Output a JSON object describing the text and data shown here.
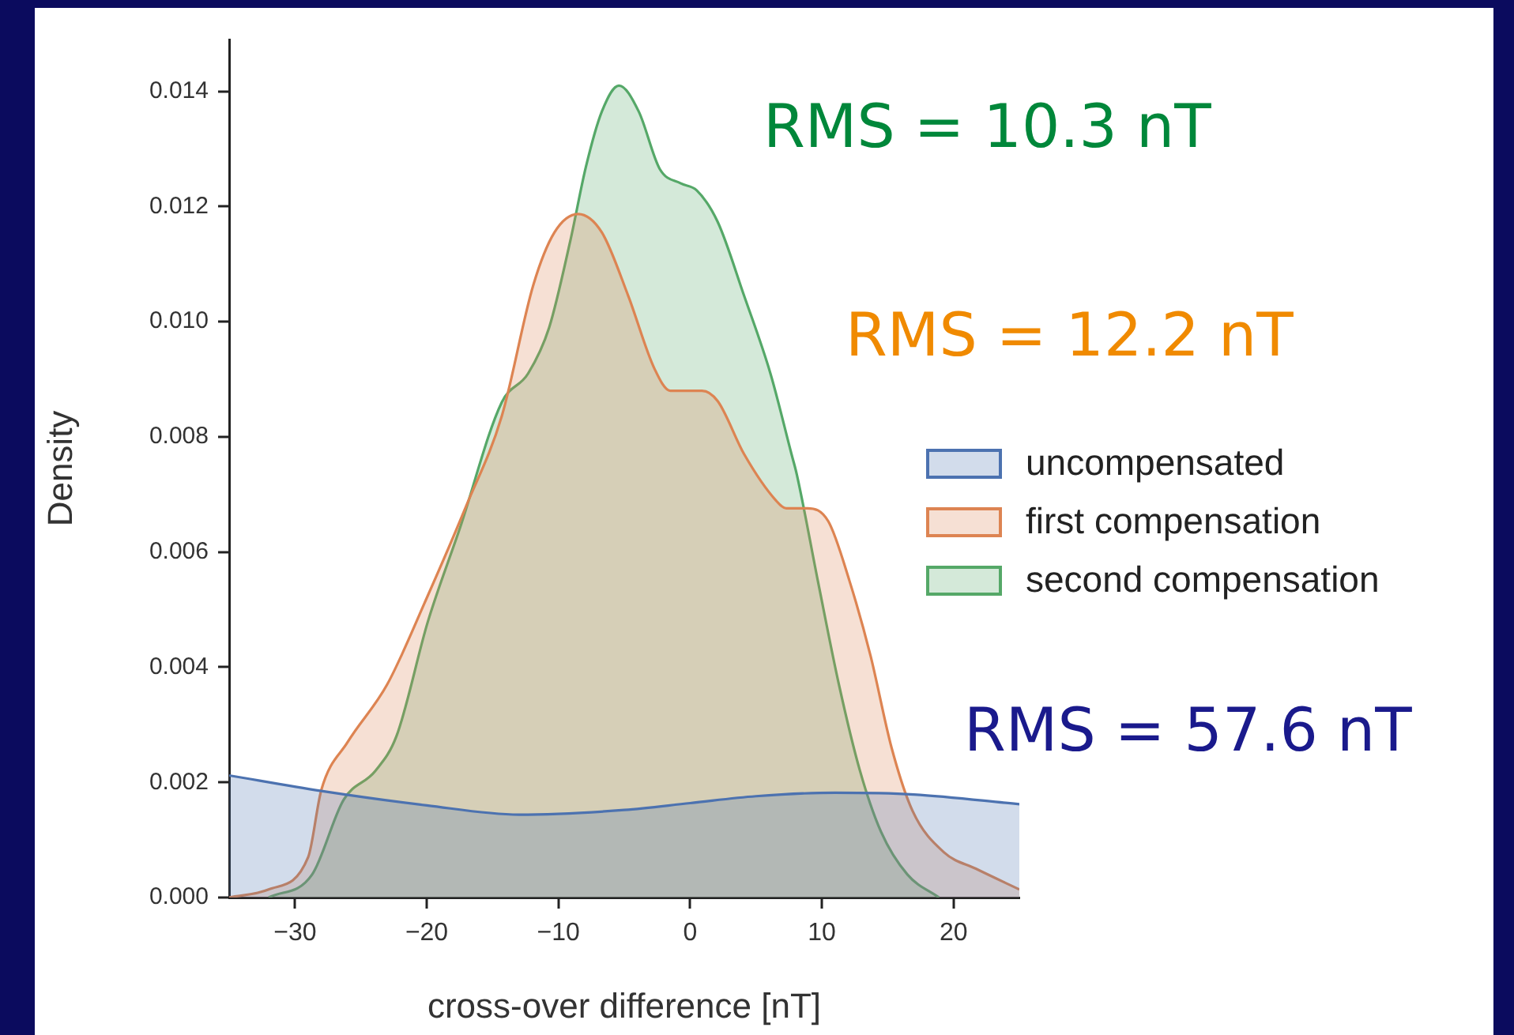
{
  "chart_data": {
    "type": "area",
    "xlabel": "cross-over difference [nT]",
    "ylabel": "Density",
    "xlim": [
      -35,
      25
    ],
    "ylim": [
      0,
      0.0149
    ],
    "xticks": [
      -30,
      -20,
      -10,
      0,
      10,
      20
    ],
    "yticks": [
      {
        "value": 0,
        "label": "0.000"
      },
      {
        "value": 0.002,
        "label": "0.002"
      },
      {
        "value": 0.004,
        "label": "0.004"
      },
      {
        "value": 0.006,
        "label": "0.006"
      },
      {
        "value": 0.008,
        "label": "0.008"
      },
      {
        "value": 0.01,
        "label": "0.010"
      },
      {
        "value": 0.012,
        "label": "0.012"
      },
      {
        "value": 0.014,
        "label": "0.014"
      }
    ],
    "grid": false,
    "legend": "right",
    "marker": "none",
    "line_style": "solid",
    "series": [
      {
        "name": "uncompensated",
        "color": "#4c72b0",
        "x": [
          -35,
          -28,
          -20,
          -13,
          -5,
          0,
          5,
          11,
          17,
          25
        ],
        "values": [
          0.00212,
          0.00185,
          0.0016,
          0.00144,
          0.00152,
          0.00164,
          0.00176,
          0.00182,
          0.00179,
          0.00162
        ]
      },
      {
        "name": "first compensation",
        "color": "#dd8452",
        "x": [
          -35,
          -32,
          -29,
          -28,
          -26,
          -23,
          -20,
          -17,
          -14.3,
          -11.9,
          -10.3,
          -8.5,
          -6.7,
          -4.7,
          -2.7,
          -1.5,
          0.9,
          2.1,
          4.1,
          6.5,
          7.3,
          8.9,
          10.5,
          12.1,
          13.7,
          15.3,
          16.9,
          19.3,
          21.7,
          25
        ],
        "values": [
          0,
          0.00014,
          0.0007,
          0.00187,
          0.0027,
          0.0037,
          0.0052,
          0.0068,
          0.00836,
          0.01064,
          0.01155,
          0.01187,
          0.01155,
          0.01045,
          0.00918,
          0.0088,
          0.0088,
          0.00862,
          0.0077,
          0.0069,
          0.00676,
          0.00676,
          0.00653,
          0.0055,
          0.0042,
          0.0026,
          0.0015,
          0.00078,
          0.0005,
          0.00014
        ]
      },
      {
        "name": "second compensation",
        "color": "#55a868",
        "x": [
          -32,
          -28.7,
          -26.3,
          -23.9,
          -22.3,
          -19.9,
          -17.5,
          -14.3,
          -12.3,
          -10.7,
          -9.1,
          -7.9,
          -6.7,
          -5.4,
          -3.9,
          -2.3,
          -0.7,
          0.5,
          2.1,
          4.1,
          6.1,
          7.7,
          8.1,
          9.7,
          11.3,
          12.9,
          14.5,
          16.5,
          18.9
        ],
        "values": [
          0,
          0.0004,
          0.0017,
          0.0022,
          0.0028,
          0.0048,
          0.0064,
          0.0086,
          0.0091,
          0.0099,
          0.0114,
          0.0127,
          0.01365,
          0.0141,
          0.01365,
          0.01265,
          0.0124,
          0.01228,
          0.01173,
          0.01045,
          0.0091,
          0.0077,
          0.00735,
          0.0055,
          0.0037,
          0.0022,
          0.00114,
          0.0004,
          0
        ]
      }
    ],
    "annotations": [
      "RMS = 10.3 nT",
      "RMS = 12.2 nT",
      "RMS = 57.6 nT"
    ]
  }
}
